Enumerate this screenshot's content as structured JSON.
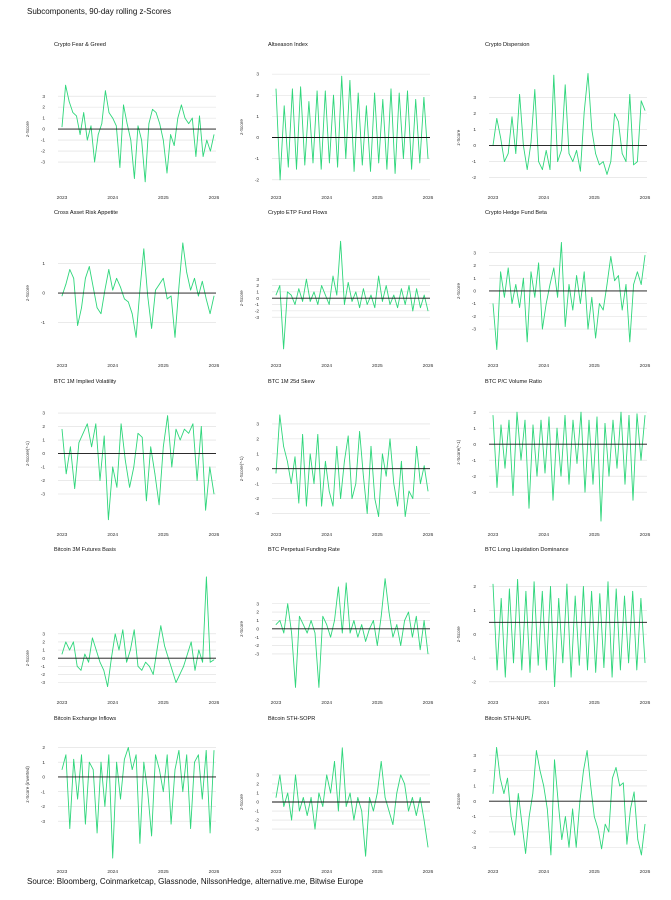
{
  "header": {
    "title": "Subcomponents, 90-day rolling z-Scores"
  },
  "footer": {
    "source": "Source: Bloomberg, Coinmarketcap, Glassnode, NilssonHedge, alternative.me, Bitwise Europe"
  },
  "colors": {
    "line": "#2fd67b",
    "zero_line": "#111111",
    "grid": "#dddddd"
  },
  "chart_data": [
    {
      "type": "line",
      "title": "Crypto Fear & Greed",
      "ylabel": "z-Score",
      "yticks": [
        -3,
        -2,
        -1,
        0,
        1,
        2,
        3
      ],
      "ylim": [
        -5,
        5.2
      ],
      "ref": 0,
      "x_ticks": [
        "2023",
        "2024",
        "2025",
        "2026"
      ],
      "x_range": [
        "2023-01",
        "2025-12"
      ],
      "values": [
        0.2,
        4,
        2.5,
        1.5,
        1.2,
        -0.5,
        1.5,
        -1,
        0.3,
        -3,
        -0.5,
        0.5,
        3.5,
        1.5,
        1,
        0.3,
        -3.5,
        2.2,
        0.5,
        -1,
        -4.5,
        0.3,
        -1,
        -4.8,
        0.5,
        1.8,
        1.5,
        0.5,
        -1,
        -4,
        -0.5,
        -1.5,
        1,
        2.2,
        1,
        0.5,
        1,
        -2.5,
        1.2,
        -2.5,
        -1,
        -2,
        -0.5
      ]
    },
    {
      "type": "line",
      "title": "Altseason Index",
      "ylabel": "z-Score",
      "yticks": [
        -2,
        -1,
        0,
        1,
        2,
        3
      ],
      "ylim": [
        -2.2,
        3.1
      ],
      "ref": 0,
      "x_ticks": [
        "2023",
        "2024",
        "2025",
        "2026"
      ],
      "x_range": [
        "2023-01",
        "2025-12"
      ],
      "values": [
        2.3,
        -2,
        1.5,
        -1.4,
        2.3,
        -1.5,
        2.4,
        -1.3,
        1.7,
        -1.2,
        2.2,
        -1.5,
        2.2,
        -1.2,
        2,
        -1.4,
        2.9,
        -1,
        2.7,
        -1.6,
        2.1,
        -1.3,
        1.5,
        -1.6,
        2.1,
        -1.2,
        1.8,
        -1.5,
        2.3,
        -1.7,
        2.1,
        -1,
        2.2,
        -1.5,
        1.8,
        -1.2,
        1.9,
        -1
      ]
    },
    {
      "type": "line",
      "title": "Crypto Dispersion",
      "ylabel": "z-Score",
      "yticks": [
        -2,
        -1,
        0,
        1,
        2,
        3
      ],
      "ylim": [
        -2.4,
        4.6
      ],
      "ref": 0,
      "x_ticks": [
        "2023",
        "2024",
        "2025",
        "2026"
      ],
      "x_range": [
        "2023-01",
        "2025-12"
      ],
      "values": [
        0,
        1.7,
        0.5,
        -1,
        -0.5,
        1.8,
        -0.5,
        3.2,
        0,
        -1.5,
        0.2,
        3.5,
        -1,
        -1.5,
        -0.3,
        -1.5,
        4.4,
        -1,
        -0.3,
        3.8,
        -0.5,
        -1,
        -0.3,
        -1.6,
        2.1,
        4.5,
        1,
        -0.5,
        -1.2,
        -1,
        -1.8,
        -1,
        2,
        1.5,
        -0.5,
        -1,
        3.2,
        -1.2,
        -1,
        2.8,
        2.2
      ]
    },
    {
      "type": "line",
      "title": "Cross Asset Risk Appetite",
      "ylabel": "z-Score",
      "yticks": [
        -1,
        0,
        1
      ],
      "ylim": [
        -2,
        1.8
      ],
      "ref": 0,
      "x_ticks": [
        "2023",
        "2024",
        "2025",
        "2026"
      ],
      "x_range": [
        "2023-01",
        "2025-12"
      ],
      "values": [
        -0.1,
        0.3,
        0.8,
        0.5,
        -1.1,
        -0.5,
        0.5,
        0.9,
        0.2,
        -0.5,
        -0.7,
        0.1,
        0.8,
        0.1,
        0.5,
        0.2,
        -0.2,
        -0.3,
        -0.7,
        -1.5,
        0.1,
        1.5,
        -0.1,
        -1.2,
        0.1,
        0.3,
        0.5,
        -0.2,
        -0.1,
        -1.5,
        0.2,
        1.7,
        0.7,
        0.1,
        0.5,
        -0.1,
        0.4,
        -0.2,
        -0.7,
        -0.1
      ]
    },
    {
      "type": "line",
      "title": "Crypto ETP Fund Flows",
      "ylabel": "z-Score",
      "yticks": [
        -3,
        -2,
        -1,
        0,
        1,
        2,
        3
      ],
      "ylim": [
        -8.5,
        9.2
      ],
      "ref": 0,
      "x_ticks": [
        "2023",
        "2024",
        "2025",
        "2026"
      ],
      "x_range": [
        "2023-01",
        "2025-12"
      ],
      "values": [
        0.5,
        2,
        -8,
        1,
        0.5,
        -1,
        1.5,
        -0.5,
        3,
        -0.5,
        1,
        -1,
        2,
        0.5,
        -1,
        3.5,
        0.5,
        9,
        -1,
        2.5,
        -0.5,
        1,
        -1.5,
        1.5,
        -1,
        0.5,
        -1.5,
        3.5,
        -0.5,
        2,
        -1,
        0.5,
        -1.5,
        1.5,
        -1,
        2,
        -2,
        1.5,
        -1.5,
        0.5,
        -2
      ]
    },
    {
      "type": "line",
      "title": "Crypto Hedge Fund Beta",
      "ylabel": "z-Score",
      "yticks": [
        -3,
        -2,
        -1,
        0,
        1,
        2,
        3
      ],
      "ylim": [
        -4.8,
        4
      ],
      "ref": 0,
      "x_ticks": [
        "2023",
        "2024",
        "2025",
        "2026"
      ],
      "x_range": [
        "2023-01",
        "2025-12"
      ],
      "values": [
        -1,
        -4.6,
        1.5,
        -0.5,
        1.8,
        -1,
        0.5,
        -1.3,
        1,
        -4,
        1.5,
        -0.5,
        2.2,
        -3,
        -1,
        0.5,
        1.8,
        -0.5,
        3.8,
        -2.8,
        0.5,
        -1.5,
        1.2,
        -1,
        1.5,
        -3,
        -0.5,
        -3.7,
        -1,
        -1.5,
        0.5,
        2.7,
        0.8,
        1.2,
        -1.5,
        0.5,
        -4,
        0.5,
        1.5,
        0.5,
        2.8
      ]
    },
    {
      "type": "line",
      "title": "BTC 1M Implied Volatility",
      "ylabel": "z-Score(*-1)",
      "yticks": [
        -3,
        -2,
        -1,
        0,
        1,
        2,
        3
      ],
      "ylim": [
        -5,
        3.3
      ],
      "ref": 0,
      "x_ticks": [
        "2023",
        "2024",
        "2025",
        "2026"
      ],
      "x_range": [
        "2023-01",
        "2025-12"
      ],
      "values": [
        1.8,
        -1.5,
        0.5,
        -2.6,
        0.8,
        1.5,
        2.2,
        0.5,
        2.2,
        -2,
        1.3,
        -4.9,
        -1,
        -2.5,
        2.2,
        -0.5,
        -2.5,
        -1,
        1.5,
        1.2,
        -3.5,
        0.5,
        -1.5,
        -3.8,
        0.5,
        2.8,
        -1,
        1.8,
        1,
        1.8,
        1.5,
        2.2,
        -2,
        2,
        -4.2,
        -1,
        -3
      ]
    },
    {
      "type": "line",
      "title": "BTC 1M 25d Skew",
      "ylabel": "z-Score(*-1)",
      "yticks": [
        -3,
        -2,
        -1,
        0,
        1,
        2,
        3
      ],
      "ylim": [
        -3.5,
        4
      ],
      "ref": 0,
      "x_ticks": [
        "2023",
        "2024",
        "2025",
        "2026"
      ],
      "x_range": [
        "2023-01",
        "2025-12"
      ],
      "values": [
        -0.3,
        3.6,
        1.5,
        0.5,
        -1,
        0.8,
        -2.3,
        2.3,
        -2.5,
        1,
        -1,
        2.3,
        -2.5,
        0.5,
        -1.5,
        -2.5,
        1.5,
        -2,
        0.5,
        2.2,
        -2,
        -1,
        2.5,
        -0.5,
        -3,
        1.5,
        -2,
        -3.2,
        1,
        -0.5,
        2,
        -1,
        -2.5,
        0.5,
        -3.2,
        -1.5,
        -2,
        1.5,
        -1,
        0.2,
        -1.5
      ]
    },
    {
      "type": "line",
      "title": "BTC P/C Volume Ratio",
      "ylabel": "z-Score(*-1)",
      "yticks": [
        -3,
        -2,
        -1,
        0,
        1,
        2
      ],
      "ylim": [
        -4.8,
        2.2
      ],
      "ref": 0,
      "x_ticks": [
        "2023",
        "2024",
        "2025",
        "2026"
      ],
      "x_range": [
        "2023-01",
        "2025-12"
      ],
      "values": [
        1.8,
        -2.7,
        1.2,
        -1.5,
        1.5,
        -3.2,
        2,
        -1,
        1.5,
        -4,
        1.2,
        -2,
        1.5,
        -1.8,
        1.7,
        -3.5,
        1,
        -2,
        1.8,
        -2.5,
        1.5,
        -1.2,
        2,
        -3,
        1.5,
        -2.5,
        1.7,
        -4.8,
        1.3,
        -2,
        1.5,
        -1.5,
        2,
        -2.5,
        1.8,
        -3.5,
        1.9,
        -1,
        1.8
      ]
    },
    {
      "type": "line",
      "title": "Bitcoin 3M Futures Basis",
      "ylabel": "z-Score",
      "yticks": [
        -3,
        -2,
        -1,
        0,
        1,
        2,
        3
      ],
      "ylim": [
        -3.8,
        10
      ],
      "ref": 0,
      "x_ticks": [
        "2023",
        "2024",
        "2025",
        "2026"
      ],
      "x_range": [
        "2023-01",
        "2025-12"
      ],
      "values": [
        0.5,
        2,
        1,
        2,
        -1,
        -1.5,
        0.5,
        -0.5,
        2.5,
        1,
        -0.5,
        -1.5,
        -3.5,
        0,
        3,
        1,
        3.5,
        -0.5,
        1,
        3.5,
        -1,
        -1.5,
        -0.5,
        -1,
        -2,
        1,
        4,
        1.5,
        0,
        -1.5,
        -3,
        -2,
        -1,
        0.5,
        2,
        -1.5,
        1,
        -0.5,
        10,
        -0.5,
        -0.2
      ]
    },
    {
      "type": "line",
      "title": "BTC Perpetual Funding Rate",
      "ylabel": "z-Score",
      "yticks": [
        -3,
        -2,
        -1,
        0,
        1,
        2,
        3
      ],
      "ylim": [
        -7.2,
        6.2
      ],
      "ref": 0,
      "x_ticks": [
        "2023",
        "2024",
        "2025",
        "2026"
      ],
      "x_range": [
        "2023-01",
        "2025-12"
      ],
      "values": [
        0.5,
        1,
        -0.5,
        3,
        -0.5,
        -7,
        1.5,
        0.5,
        -0.5,
        1,
        -0.5,
        -7,
        1.5,
        0.5,
        -1,
        1,
        5,
        -0.5,
        5.5,
        -0.5,
        1,
        -1,
        0.5,
        -1.5,
        0,
        1,
        -2,
        1.5,
        6,
        2,
        -1,
        0.5,
        -2,
        1,
        2,
        -1,
        1.5,
        -2.5,
        1,
        -3
      ]
    },
    {
      "type": "line",
      "title": "BTC Long Liquidation Dominance",
      "ylabel": "z-Score",
      "yticks": [
        -2,
        -1,
        0,
        1,
        2
      ],
      "ylim": [
        -2.3,
        2.4
      ],
      "ref": 0.5,
      "x_ticks": [
        "2023",
        "2024",
        "2025",
        "2026"
      ],
      "x_range": [
        "2023-01",
        "2025-12"
      ],
      "values": [
        2.1,
        -1.5,
        1.5,
        -1.8,
        1.9,
        -1.2,
        2.3,
        -1.5,
        1.8,
        -1.6,
        2.2,
        -1.3,
        1.8,
        -1.5,
        2,
        -2.2,
        1.5,
        -1.2,
        2.1,
        -1.8,
        1.6,
        -1.3,
        2,
        -1.5,
        1.8,
        -1.6,
        1.7,
        -1.4,
        2.2,
        -1.8,
        1.9,
        -1.5,
        1.6,
        -1.2,
        1.8,
        -1.5,
        1.5,
        -1.2
      ]
    },
    {
      "type": "line",
      "title": "Bitcoin Exchange Inflows",
      "ylabel": "z-Score (inverted)",
      "yticks": [
        -3,
        -2,
        -1,
        0,
        1,
        2
      ],
      "ylim": [
        -5.5,
        2.1
      ],
      "ref": 0,
      "x_ticks": [
        "2023",
        "2024",
        "2025",
        "2026"
      ],
      "x_range": [
        "2023-01",
        "2025-12"
      ],
      "values": [
        0.5,
        1.5,
        -3.5,
        1.2,
        -1.5,
        1.5,
        -3.2,
        1,
        0.5,
        -3.8,
        1,
        -2,
        1.5,
        -5.5,
        1,
        -1.5,
        1.2,
        2,
        0.5,
        1.5,
        -4.5,
        1,
        -1,
        -4,
        1.5,
        0.5,
        -1,
        1.5,
        -3.2,
        0.5,
        1.8,
        -1,
        1.5,
        -3.5,
        1,
        1.5,
        -1.5,
        1.8,
        -3.8,
        1.8
      ]
    },
    {
      "type": "line",
      "title": "Bitcoin STH-SOPR",
      "ylabel": "z-Score",
      "yticks": [
        -3,
        -2,
        -1,
        0,
        1,
        2,
        3
      ],
      "ylim": [
        -6.2,
        6.2
      ],
      "ref": 0,
      "x_ticks": [
        "2023",
        "2024",
        "2025",
        "2026"
      ],
      "x_range": [
        "2023-01",
        "2025-12"
      ],
      "values": [
        0.5,
        3,
        -0.5,
        1,
        -2,
        3,
        -1,
        0.5,
        -1.5,
        0.5,
        -3,
        1,
        -0.5,
        3,
        1,
        4.5,
        -1,
        6,
        -0.5,
        1,
        -2,
        0.5,
        -1,
        -6,
        0.5,
        -1,
        1,
        4.5,
        0.5,
        -1,
        -2.5,
        1,
        3,
        2,
        -1,
        0.5,
        -1.5,
        0.5,
        -2,
        -5
      ]
    },
    {
      "type": "line",
      "title": "Bitcoin STH-NUPL",
      "ylabel": "z-Score",
      "yticks": [
        -3,
        -2,
        -1,
        0,
        1,
        2,
        3
      ],
      "ylim": [
        -3.7,
        3.6
      ],
      "ref": 0,
      "x_ticks": [
        "2023",
        "2024",
        "2025",
        "2026"
      ],
      "x_range": [
        "2023-01",
        "2025-12"
      ],
      "values": [
        0.5,
        3.5,
        1.5,
        0.5,
        1.5,
        -1,
        -2.2,
        0.5,
        -1.5,
        -3.4,
        -1,
        0.5,
        3.3,
        2,
        1,
        -0.5,
        -3.5,
        2.7,
        0,
        -2.5,
        -1,
        -3,
        -0.5,
        -3,
        0,
        2,
        3.3,
        1,
        -1,
        -1.8,
        -3.1,
        -1.5,
        -2,
        1.5,
        2.2,
        1,
        1.2,
        -2.8,
        -0.5,
        0.6,
        -2.5,
        -3.5,
        -1.5
      ]
    }
  ]
}
